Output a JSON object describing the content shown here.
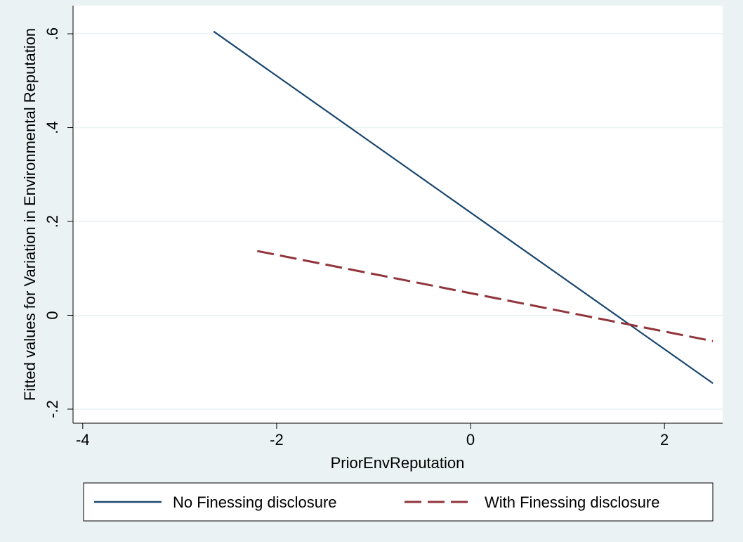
{
  "chart_data": {
    "type": "line",
    "xlabel": "PriorEnvReputation",
    "ylabel": "Fitted values for Variation in Environmental Reputation",
    "xlim": [
      -4.1,
      2.6
    ],
    "ylim": [
      -0.23,
      0.66
    ],
    "x_ticks": [
      -4,
      -2,
      0,
      2
    ],
    "x_tick_labels": [
      "-4",
      "-2",
      "0",
      "2"
    ],
    "y_ticks": [
      -0.2,
      0,
      0.2,
      0.4,
      0.6
    ],
    "y_tick_labels": [
      "-.2",
      "0",
      ".2",
      ".4",
      ".6"
    ],
    "grid": "horizontal",
    "legend_position": "bottom",
    "series": [
      {
        "name": "No Finessing disclosure",
        "style": "solid",
        "color": "#1a476f",
        "x": [
          -2.65,
          2.5
        ],
        "y": [
          0.605,
          -0.145
        ]
      },
      {
        "name": "With Finessing disclosure",
        "style": "dashed",
        "color": "#90353b",
        "x": [
          -2.2,
          2.5
        ],
        "y": [
          0.137,
          -0.055
        ]
      }
    ]
  },
  "colors": {
    "background": "#eaf2f3",
    "plot_background": "#ffffff",
    "grid": "#eaf2f3"
  }
}
